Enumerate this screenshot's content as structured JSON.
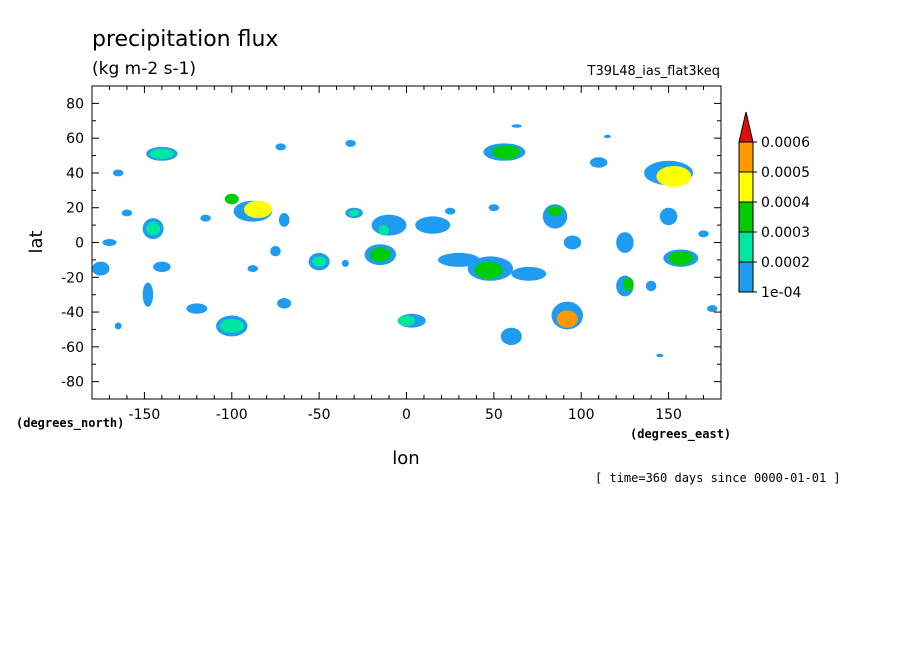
{
  "chart_data": {
    "type": "heatmap",
    "title": "precipitation flux",
    "subtitle": "(kg m-2 s-1)",
    "dataset_label": "T39L48_ias_flat3keq",
    "xlabel": "lon",
    "ylabel": "lat",
    "x_units": "(degrees_east)",
    "y_units": "(degrees_north)",
    "time_label": "[ time=360 days since 0000-01-01 ]",
    "xlim": [
      -180,
      180
    ],
    "ylim": [
      -90,
      90
    ],
    "x_ticks": [
      -150,
      -100,
      -50,
      0,
      50,
      100,
      150
    ],
    "x_tick_labels": [
      "-150",
      "-100",
      "-50",
      "0",
      "50",
      "100",
      "150"
    ],
    "y_ticks": [
      -80,
      -60,
      -40,
      -20,
      0,
      20,
      40,
      60,
      80
    ],
    "y_tick_labels": [
      "-80",
      "-60",
      "-40",
      "-20",
      "0",
      "20",
      "40",
      "60",
      "80"
    ],
    "grid": false,
    "colorbar": {
      "position": "right",
      "levels": [
        0.0001,
        0.0002,
        0.0003,
        0.0004,
        0.0005,
        0.0006
      ],
      "level_labels": [
        "1e-04",
        "0.0002",
        "0.0003",
        "0.0004",
        "0.0005",
        "0.0006"
      ],
      "colors": [
        "#1f9bf2",
        "#00e6a0",
        "#00cc00",
        "#ffff00",
        "#ff9900",
        "#e01010"
      ],
      "extend": "max"
    },
    "regions": [
      {
        "lon": 153,
        "lat": 38,
        "rx": 10,
        "ry": 6,
        "level": 4
      },
      {
        "lon": 92,
        "lat": -44,
        "rx": 6,
        "ry": 5,
        "level": 5
      },
      {
        "lon": -85,
        "lat": 19,
        "rx": 8,
        "ry": 5,
        "level": 4
      },
      {
        "lon": -100,
        "lat": 25,
        "rx": 4,
        "ry": 3,
        "level": 3
      },
      {
        "lon": 47,
        "lat": -16,
        "rx": 8,
        "ry": 5,
        "level": 3
      },
      {
        "lon": 57,
        "lat": 52,
        "rx": 8,
        "ry": 4,
        "level": 3
      },
      {
        "lon": 157,
        "lat": -9,
        "rx": 7,
        "ry": 4,
        "level": 3
      },
      {
        "lon": 127,
        "lat": -24,
        "rx": 3,
        "ry": 4,
        "level": 3
      },
      {
        "lon": -15,
        "lat": -7,
        "rx": 6,
        "ry": 4,
        "level": 3
      },
      {
        "lon": -50,
        "lat": -11,
        "rx": 4,
        "ry": 3,
        "level": 2
      },
      {
        "lon": -145,
        "lat": 8,
        "rx": 4,
        "ry": 4,
        "level": 2
      },
      {
        "lon": 85,
        "lat": 18,
        "rx": 4,
        "ry": 3,
        "level": 3
      },
      {
        "lon": -30,
        "lat": 17,
        "rx": 3,
        "ry": 2,
        "level": 2
      },
      {
        "lon": -13,
        "lat": 7,
        "rx": 3,
        "ry": 3,
        "level": 2
      },
      {
        "lon": -140,
        "lat": 51,
        "rx": 7,
        "ry": 3,
        "level": 2
      },
      {
        "lon": -100,
        "lat": -48,
        "rx": 7,
        "ry": 4,
        "level": 2
      },
      {
        "lon": 0,
        "lat": -45,
        "rx": 5,
        "ry": 3,
        "level": 2
      },
      {
        "lon": 60,
        "lat": -54,
        "rx": 5,
        "ry": 4,
        "level": 1
      },
      {
        "lon": 150,
        "lat": 40,
        "rx": 14,
        "ry": 7,
        "level": 1
      },
      {
        "lon": 92,
        "lat": -42,
        "rx": 9,
        "ry": 8,
        "level": 1
      },
      {
        "lon": -88,
        "lat": 18,
        "rx": 11,
        "ry": 6,
        "level": 1
      },
      {
        "lon": 48,
        "lat": -15,
        "rx": 13,
        "ry": 7,
        "level": 1
      },
      {
        "lon": 56,
        "lat": 52,
        "rx": 12,
        "ry": 5,
        "level": 1
      },
      {
        "lon": 157,
        "lat": -9,
        "rx": 10,
        "ry": 5,
        "level": 1
      },
      {
        "lon": 125,
        "lat": -25,
        "rx": 5,
        "ry": 6,
        "level": 1
      },
      {
        "lon": -15,
        "lat": -7,
        "rx": 9,
        "ry": 6,
        "level": 1
      },
      {
        "lon": -50,
        "lat": -11,
        "rx": 6,
        "ry": 5,
        "level": 1
      },
      {
        "lon": -145,
        "lat": 8,
        "rx": 6,
        "ry": 6,
        "level": 1
      },
      {
        "lon": 85,
        "lat": 15,
        "rx": 7,
        "ry": 7,
        "level": 1
      },
      {
        "lon": -140,
        "lat": 51,
        "rx": 9,
        "ry": 4,
        "level": 1
      },
      {
        "lon": -100,
        "lat": -48,
        "rx": 9,
        "ry": 6,
        "level": 1
      },
      {
        "lon": 3,
        "lat": -45,
        "rx": 8,
        "ry": 4,
        "level": 1
      },
      {
        "lon": 60,
        "lat": -54,
        "rx": 6,
        "ry": 5,
        "level": 1
      },
      {
        "lon": -30,
        "lat": 17,
        "rx": 5,
        "ry": 3,
        "level": 1
      },
      {
        "lon": -10,
        "lat": 10,
        "rx": 10,
        "ry": 6,
        "level": 1
      },
      {
        "lon": 15,
        "lat": 10,
        "rx": 10,
        "ry": 5,
        "level": 1
      },
      {
        "lon": 30,
        "lat": -10,
        "rx": 12,
        "ry": 4,
        "level": 1
      },
      {
        "lon": 70,
        "lat": -18,
        "rx": 10,
        "ry": 4,
        "level": 1
      },
      {
        "lon": 125,
        "lat": 0,
        "rx": 5,
        "ry": 6,
        "level": 1
      },
      {
        "lon": -175,
        "lat": -15,
        "rx": 5,
        "ry": 4,
        "level": 1
      },
      {
        "lon": -170,
        "lat": 0,
        "rx": 4,
        "ry": 2,
        "level": 1
      },
      {
        "lon": -160,
        "lat": 17,
        "rx": 3,
        "ry": 2,
        "level": 1
      },
      {
        "lon": -140,
        "lat": -14,
        "rx": 5,
        "ry": 3,
        "level": 1
      },
      {
        "lon": -120,
        "lat": -38,
        "rx": 6,
        "ry": 3,
        "level": 1
      },
      {
        "lon": -148,
        "lat": -30,
        "rx": 3,
        "ry": 7,
        "level": 1
      },
      {
        "lon": -70,
        "lat": -35,
        "rx": 4,
        "ry": 3,
        "level": 1
      },
      {
        "lon": -72,
        "lat": 55,
        "rx": 3,
        "ry": 2,
        "level": 1
      },
      {
        "lon": -32,
        "lat": 57,
        "rx": 3,
        "ry": 2,
        "level": 1
      },
      {
        "lon": 63,
        "lat": 67,
        "rx": 3,
        "ry": 1,
        "level": 1
      },
      {
        "lon": 110,
        "lat": 46,
        "rx": 5,
        "ry": 3,
        "level": 1
      },
      {
        "lon": 115,
        "lat": 61,
        "rx": 2,
        "ry": 1,
        "level": 1
      },
      {
        "lon": -165,
        "lat": 40,
        "rx": 3,
        "ry": 2,
        "level": 1
      },
      {
        "lon": -115,
        "lat": 14,
        "rx": 3,
        "ry": 2,
        "level": 1
      },
      {
        "lon": -70,
        "lat": 13,
        "rx": 3,
        "ry": 4,
        "level": 1
      },
      {
        "lon": -75,
        "lat": -5,
        "rx": 3,
        "ry": 3,
        "level": 1
      },
      {
        "lon": 150,
        "lat": 15,
        "rx": 5,
        "ry": 5,
        "level": 1
      },
      {
        "lon": 175,
        "lat": -38,
        "rx": 3,
        "ry": 2,
        "level": 1
      },
      {
        "lon": 145,
        "lat": -65,
        "rx": 2,
        "ry": 1,
        "level": 1
      },
      {
        "lon": 95,
        "lat": 0,
        "rx": 5,
        "ry": 4,
        "level": 1
      },
      {
        "lon": 140,
        "lat": -25,
        "rx": 3,
        "ry": 3,
        "level": 1
      },
      {
        "lon": 170,
        "lat": 5,
        "rx": 3,
        "ry": 2,
        "level": 1
      },
      {
        "lon": 50,
        "lat": 20,
        "rx": 3,
        "ry": 2,
        "level": 1
      },
      {
        "lon": -165,
        "lat": -48,
        "rx": 2,
        "ry": 2,
        "level": 1
      },
      {
        "lon": -35,
        "lat": -12,
        "rx": 2,
        "ry": 2,
        "level": 1
      },
      {
        "lon": 25,
        "lat": 18,
        "rx": 3,
        "ry": 2,
        "level": 1
      },
      {
        "lon": -88,
        "lat": -15,
        "rx": 3,
        "ry": 2,
        "level": 1
      }
    ]
  }
}
